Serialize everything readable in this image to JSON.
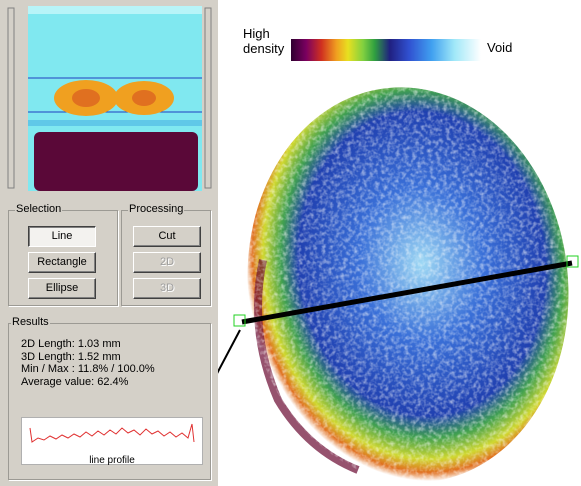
{
  "panel": {
    "selection": {
      "title": "Selection",
      "buttons": [
        "Line",
        "Rectangle",
        "Ellipse"
      ]
    },
    "processing": {
      "title": "Processing",
      "buttons": [
        "Cut",
        "2D",
        "3D"
      ]
    },
    "results": {
      "title": "Results",
      "lines": [
        "2D Length: 1.03 mm",
        "3D Length: 1.52 mm",
        "Min / Max : 11.8% / 100.0%",
        "Average value: 62.4%"
      ],
      "caption": "line profile"
    }
  },
  "legend": {
    "high": "High density",
    "low": "Void"
  }
}
